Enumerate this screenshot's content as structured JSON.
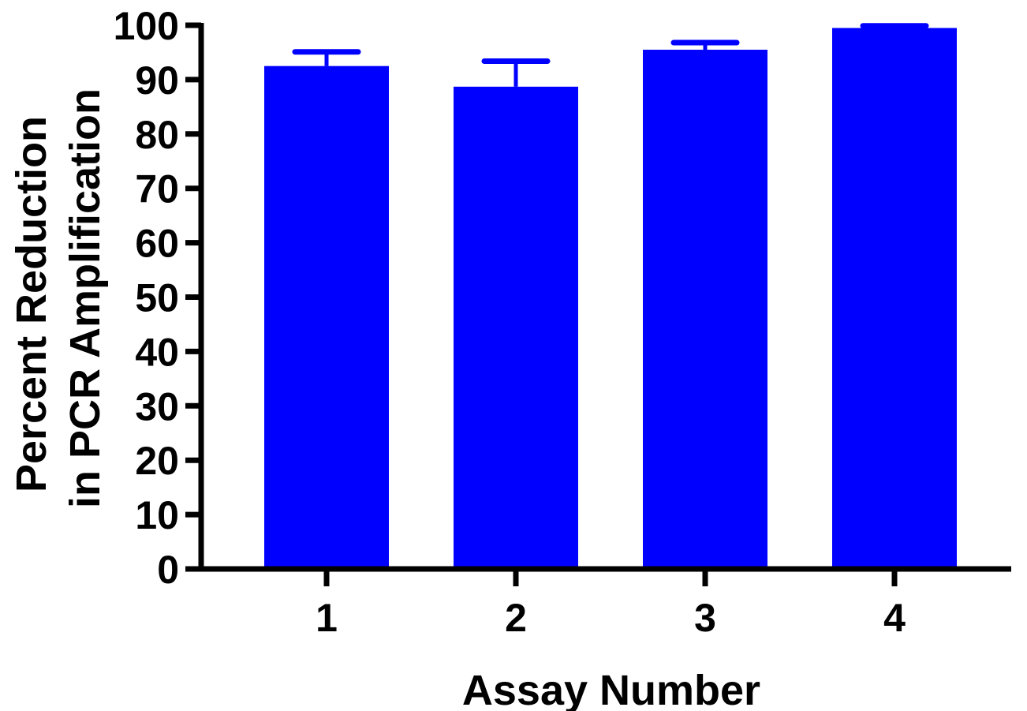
{
  "chart_data": {
    "type": "bar",
    "title": "",
    "xlabel": "Assay Number",
    "ylabel_lines": [
      "Percent Reduction",
      "in PCR Amplification"
    ],
    "categories": [
      "1",
      "2",
      "3",
      "4"
    ],
    "values": [
      92.5,
      88.7,
      95.5,
      99.5
    ],
    "error_upper": [
      95.1,
      93.4,
      96.8,
      99.9
    ],
    "ylim": [
      0,
      100
    ],
    "yticks": [
      0,
      10,
      20,
      30,
      40,
      50,
      60,
      70,
      80,
      90,
      100
    ],
    "grid": false,
    "legend": "none",
    "bar_color": "#0000ff",
    "error_bar_color": "#0000ff",
    "axis_color": "#000000"
  }
}
